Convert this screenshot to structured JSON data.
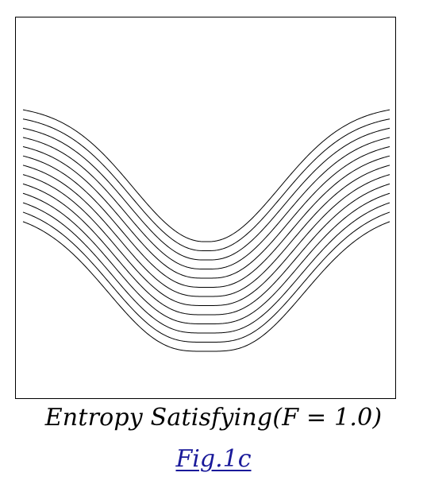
{
  "figure": {
    "caption": "Entropy Satisfying(F = 1.0)",
    "label": "Fig.1c",
    "colors": {
      "curve": "#000000",
      "frame": "#000000",
      "link": "#1a1a9a"
    }
  },
  "chart_data": {
    "type": "line",
    "description_of_marks": "family of stacked V-shaped level curves",
    "series_count": 13,
    "grid": false,
    "legend": "none",
    "title": "",
    "xlabel": "",
    "ylabel": ""
  }
}
